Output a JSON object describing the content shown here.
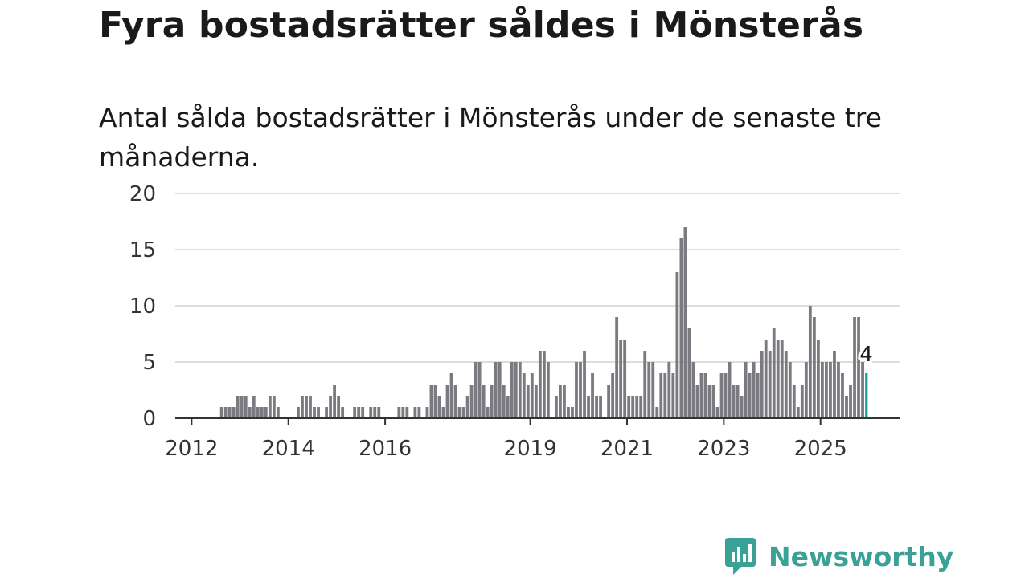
{
  "header": {
    "title": "Fyra bostadsrätter såldes i Mönsterås",
    "subtitle": "Antal sålda bostadsrätter i Mönsterås under de senaste tre månaderna."
  },
  "brand": {
    "name": "Newsworthy",
    "icon": "newsworthy-logo-icon",
    "color": "#3aa197"
  },
  "colors": {
    "bar": "#7a7a80",
    "highlight": "#1b9a9c",
    "grid": "#dddddd",
    "axis": "#333333"
  },
  "chart_data": {
    "type": "bar",
    "title": "",
    "xlabel": "",
    "ylabel": "",
    "ylim": [
      0,
      20
    ],
    "y_ticks": [
      0,
      5,
      10,
      15,
      20
    ],
    "x_ticks": [
      "2012",
      "2014",
      "2016",
      "2019",
      "2021",
      "2023",
      "2025"
    ],
    "grid": true,
    "start_month": "2011-09",
    "frequency": "monthly",
    "values": [
      0,
      0,
      0,
      0,
      0,
      0,
      0,
      0,
      0,
      0,
      0,
      1,
      1,
      1,
      1,
      2,
      2,
      2,
      1,
      2,
      1,
      1,
      1,
      2,
      2,
      1,
      0,
      0,
      0,
      0,
      1,
      2,
      2,
      2,
      1,
      1,
      0,
      1,
      2,
      3,
      2,
      1,
      0,
      0,
      1,
      1,
      1,
      0,
      1,
      1,
      1,
      0,
      0,
      0,
      0,
      1,
      1,
      1,
      0,
      1,
      1,
      0,
      1,
      3,
      3,
      2,
      1,
      3,
      4,
      3,
      1,
      1,
      2,
      3,
      5,
      5,
      3,
      1,
      3,
      5,
      5,
      3,
      2,
      5,
      5,
      5,
      4,
      3,
      4,
      3,
      6,
      6,
      5,
      0,
      2,
      3,
      3,
      1,
      1,
      5,
      5,
      6,
      2,
      4,
      2,
      2,
      0,
      3,
      4,
      9,
      7,
      7,
      2,
      2,
      2,
      2,
      6,
      5,
      5,
      1,
      4,
      4,
      5,
      4,
      13,
      16,
      17,
      8,
      5,
      3,
      4,
      4,
      3,
      3,
      1,
      4,
      4,
      5,
      3,
      3,
      2,
      5,
      4,
      5,
      4,
      6,
      7,
      6,
      8,
      7,
      7,
      6,
      5,
      3,
      1,
      3,
      5,
      10,
      9,
      7,
      5,
      5,
      5,
      6,
      5,
      4,
      2,
      3,
      9,
      9,
      5,
      4
    ],
    "highlight_last": true,
    "annotation": "4"
  }
}
